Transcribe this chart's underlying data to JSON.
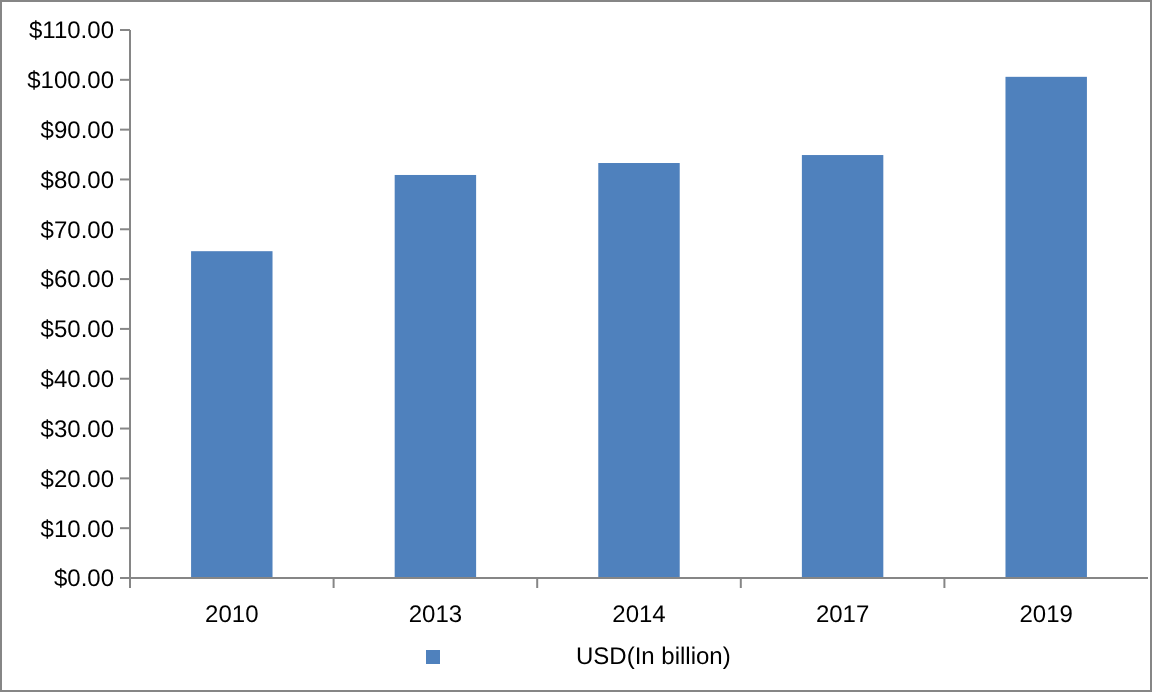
{
  "chart_data": {
    "type": "bar",
    "categories": [
      "2010",
      "2013",
      "2014",
      "2017",
      "2019"
    ],
    "series": [
      {
        "name": "USD(In billion)",
        "color": "#4f81bd",
        "values": [
          65.6,
          80.9,
          83.3,
          84.9,
          100.6
        ]
      }
    ],
    "ylim": [
      0,
      110
    ],
    "yticks": [
      {
        "value": 0,
        "label": "$0.00"
      },
      {
        "value": 10,
        "label": "$10.00"
      },
      {
        "value": 20,
        "label": "$20.00"
      },
      {
        "value": 30,
        "label": "$30.00"
      },
      {
        "value": 40,
        "label": "$40.00"
      },
      {
        "value": 50,
        "label": "$50.00"
      },
      {
        "value": 60,
        "label": "$60.00"
      },
      {
        "value": 70,
        "label": "$70.00"
      },
      {
        "value": 80,
        "label": "$80.00"
      },
      {
        "value": 90,
        "label": "$90.00"
      },
      {
        "value": 100,
        "label": "$100.00"
      },
      {
        "value": 110,
        "label": "$110.00"
      }
    ],
    "legend": "bottom",
    "grid": false
  }
}
